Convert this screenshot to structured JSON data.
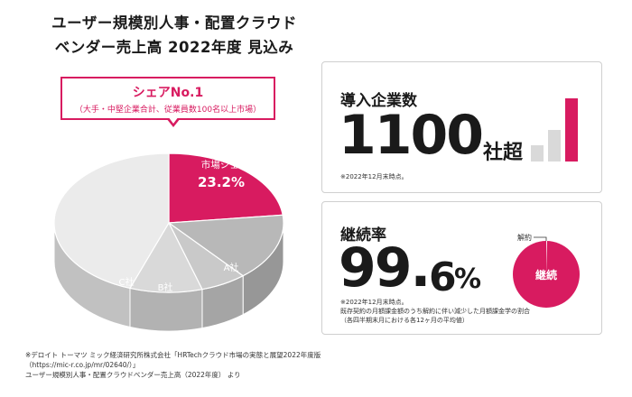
{
  "title": {
    "line1": "ユーザー規模別人事・配置クラウド",
    "line2": "ベンダー売上高 2022年度 見込み"
  },
  "callout": {
    "title": "シェアNo.1",
    "subtitle": "（大手・中堅企業合計、従業員数100名以上市場）"
  },
  "chart_data": {
    "type": "pie",
    "slices": [
      {
        "label": "市場シェア",
        "value": 23.2,
        "value_label": "23.2%",
        "color": "#d81b60"
      },
      {
        "label": "A社",
        "value": 15.6,
        "color": "#b8b8b8"
      },
      {
        "label": "B社",
        "value": 6.5,
        "color": "#c9c9c9"
      },
      {
        "label": "C社",
        "value": 10.2,
        "color": "#d9d9d9"
      },
      {
        "label": "",
        "value": 44.5,
        "color": "#ebebeb"
      }
    ]
  },
  "footnote": {
    "line1": "※デロイト トーマツ ミック経済研究所株式会社「HRTechクラウド市場の実態と展望2022年度版",
    "line2": "（https://mic-r.co.jp/mr/02640/）」",
    "line3": "ユーザー規模別人事・配置クラウドベンダー売上高（2022年度） より"
  },
  "card1": {
    "heading": "導入企業数",
    "value": "1100",
    "unit": "社超",
    "note": "※2022年12月末時点。",
    "bars": [
      0.25,
      0.5,
      1.0
    ]
  },
  "card2": {
    "heading": "継続率",
    "value_int": "99.",
    "value_dec": "6",
    "unit": "%",
    "note1": "※2022年12月末時点。",
    "note2": "既存契約の月額課金額のうち解約に伴い減少した月額課金学の割合",
    "note3": "（各四半期末月における各12ヶ月の平均値）",
    "donut_label_main": "継続",
    "donut_label_cancel": "解約",
    "retention_rate": 99.6
  },
  "colors": {
    "accent": "#d81b60",
    "accent_dark": "#8e1640",
    "gray_bar": "#d9d9d9"
  }
}
